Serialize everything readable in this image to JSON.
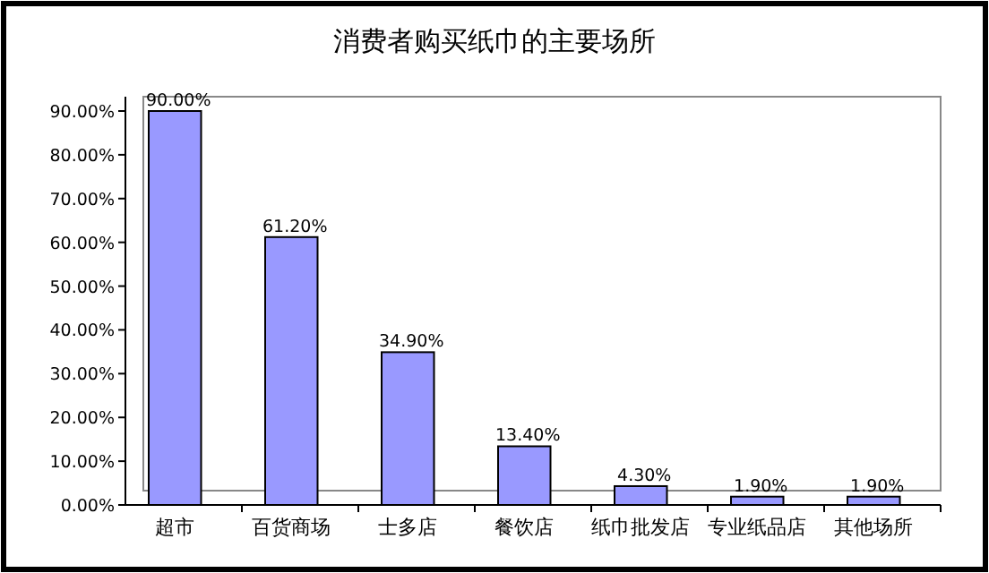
{
  "chart_data": {
    "type": "bar",
    "title": "消费者购买纸巾的主要场所",
    "categories": [
      "超市",
      "百货商场",
      "士多店",
      "餐饮店",
      "纸巾批发店",
      "专业纸品店",
      "其他场所"
    ],
    "values": [
      90.0,
      61.2,
      34.9,
      13.4,
      4.3,
      1.9,
      1.9
    ],
    "value_labels": [
      "90.00%",
      "61.20%",
      "34.90%",
      "13.40%",
      "4.30%",
      "1.90%",
      "1.90%"
    ],
    "color": "#9999ff",
    "ylim": [
      0,
      90
    ],
    "yticks": [
      {
        "value": 0,
        "label": "0.00%"
      },
      {
        "value": 10,
        "label": "10.00%"
      },
      {
        "value": 20,
        "label": "20.00%"
      },
      {
        "value": 30,
        "label": "30.00%"
      },
      {
        "value": 40,
        "label": "40.00%"
      },
      {
        "value": 50,
        "label": "50.00%"
      },
      {
        "value": 60,
        "label": "60.00%"
      },
      {
        "value": 70,
        "label": "70.00%"
      },
      {
        "value": 80,
        "label": "80.00%"
      },
      {
        "value": 90,
        "label": "90.00%"
      }
    ]
  }
}
